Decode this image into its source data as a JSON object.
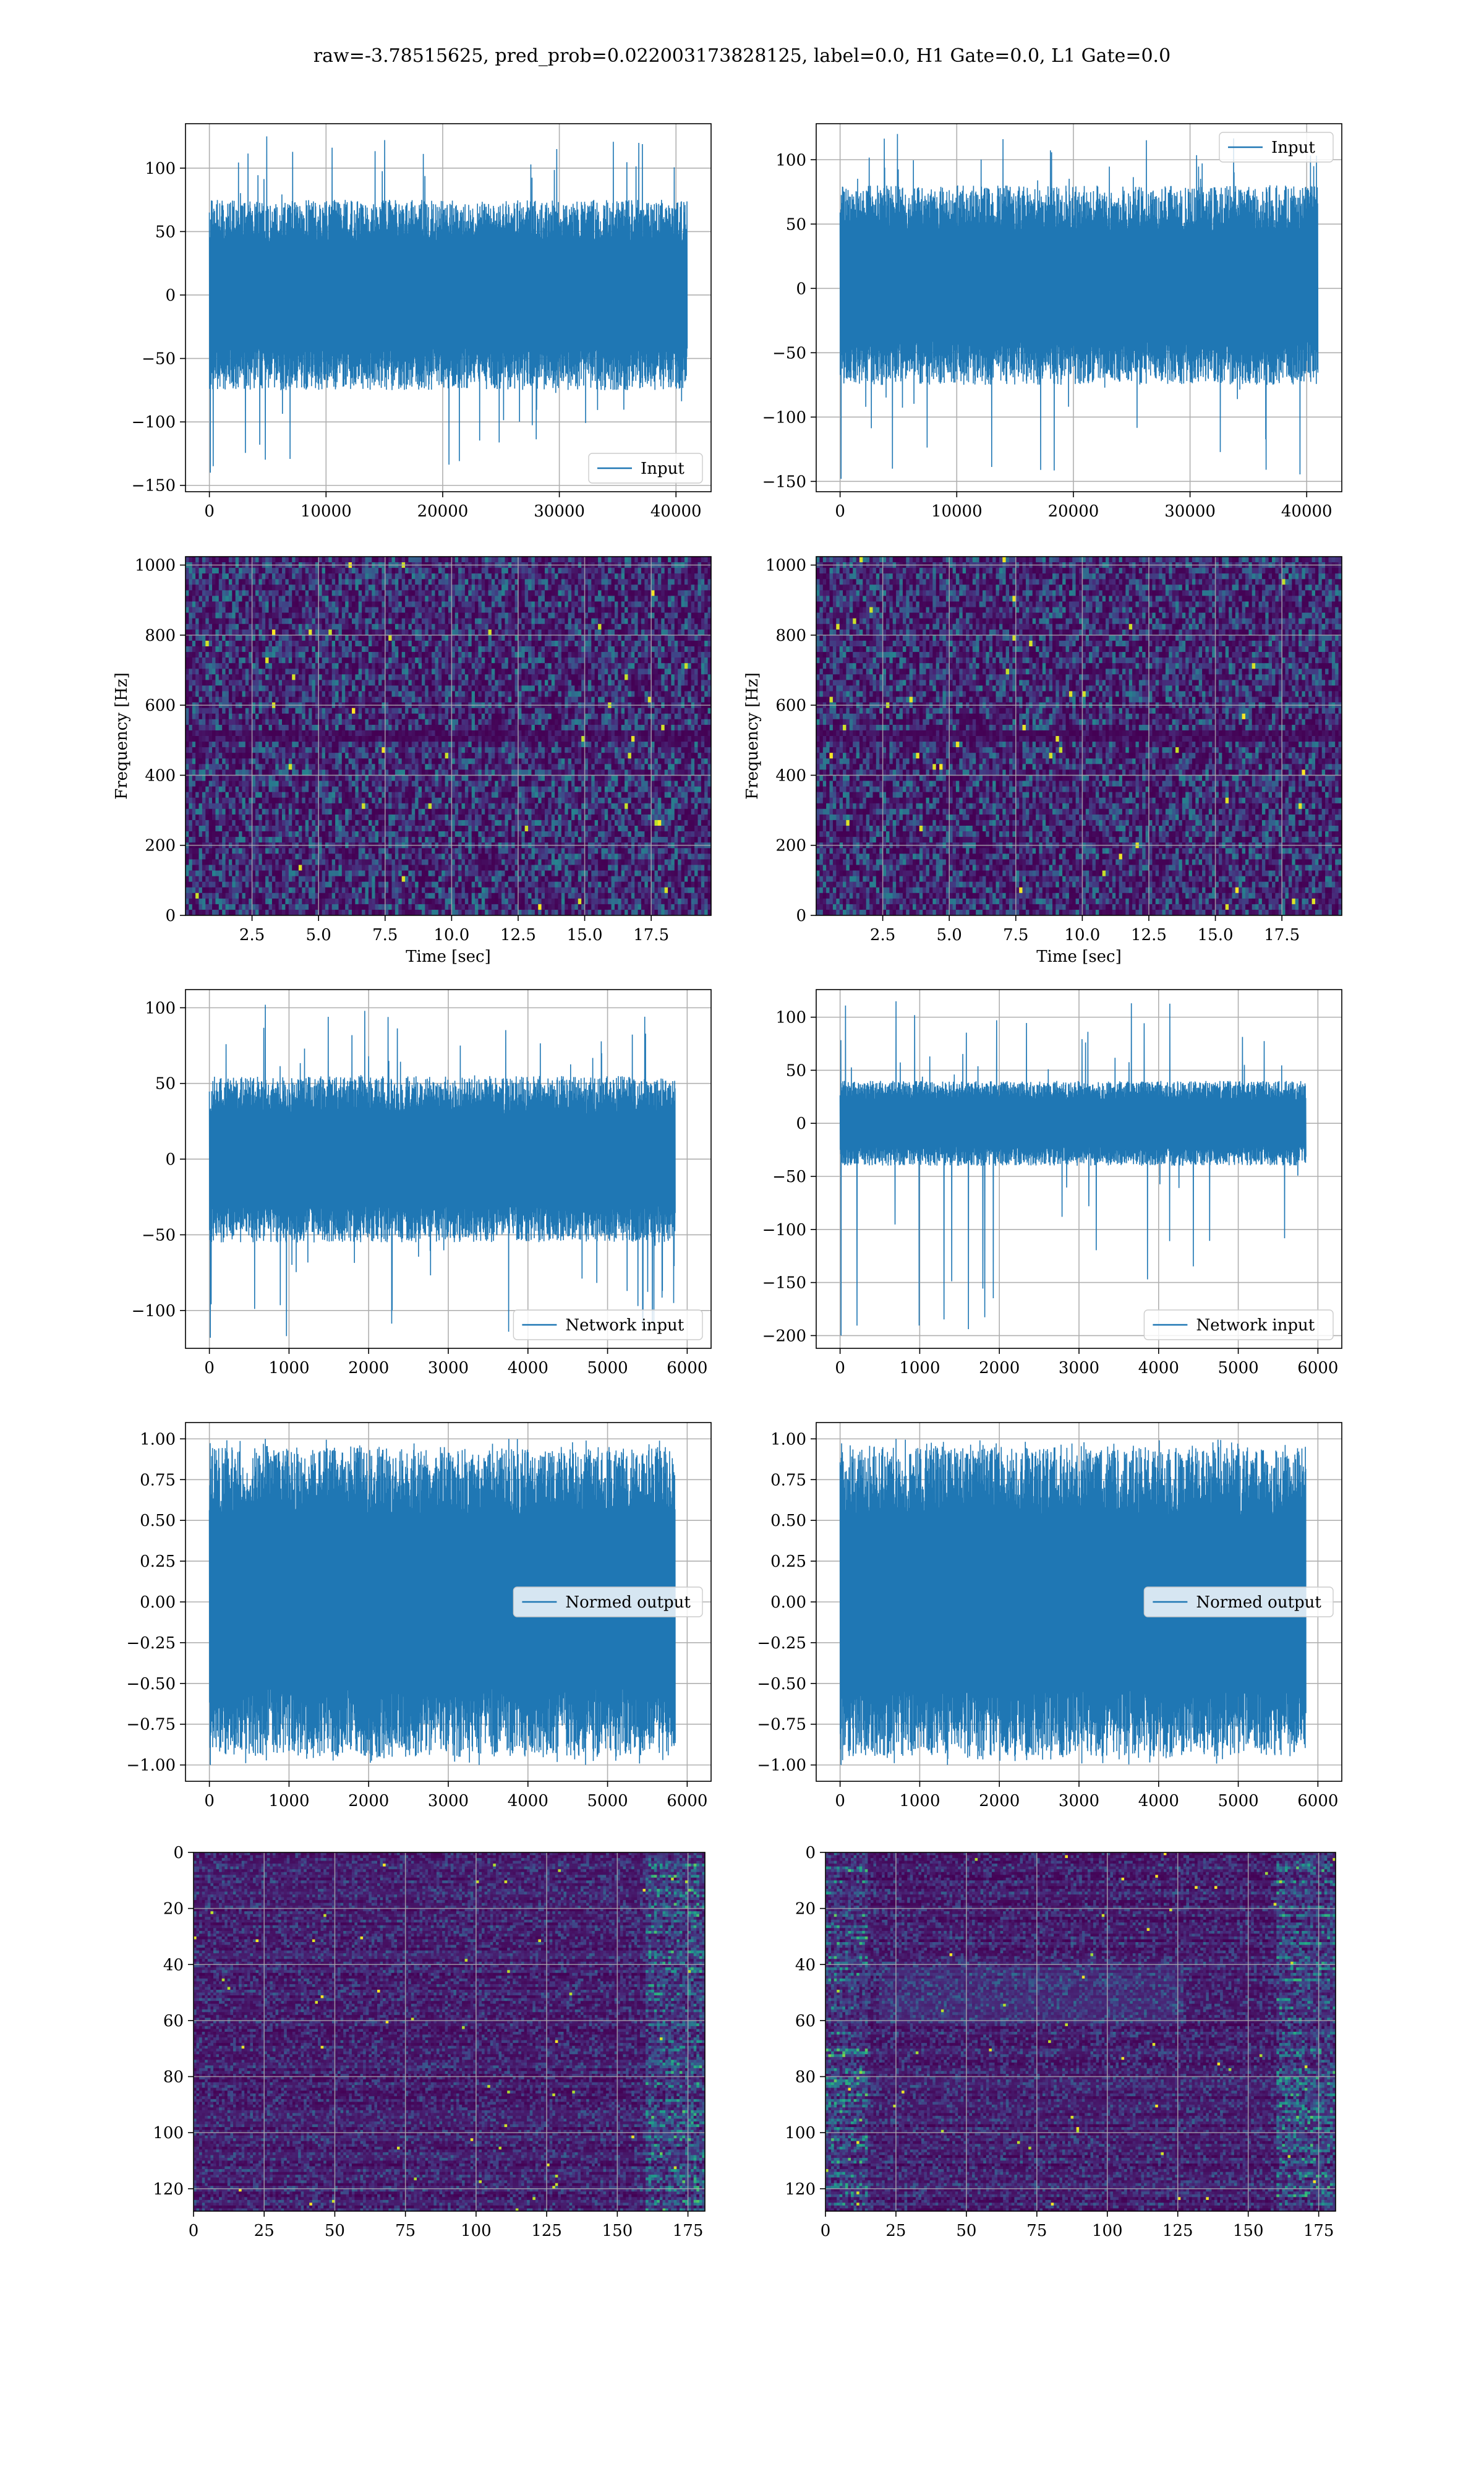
{
  "figure": {
    "suptitle": "raw=-3.78515625, pred_prob=0.022003173828125, label=0.0, H1 Gate=0.0, L1 Gate=0.0",
    "colors": {
      "line": "#1f77b4",
      "grid": "#b0b0b0",
      "axes": "#000000",
      "background": "#ffffff"
    }
  },
  "chart_data": [
    {
      "id": "input-h1",
      "type": "line",
      "grid": true,
      "xlim": [
        -2048,
        43008
      ],
      "ylim": [
        -155,
        135
      ],
      "xticks": [
        0,
        10000,
        20000,
        30000,
        40000
      ],
      "xtick_labels": [
        "0",
        "10000",
        "20000",
        "30000",
        "40000"
      ],
      "yticks": [
        -150,
        -100,
        -50,
        0,
        50,
        100
      ],
      "ytick_labels": [
        "−150",
        "−100",
        "−50",
        "0",
        "50",
        "100"
      ],
      "legend": {
        "position": "lower-right",
        "entries": [
          "Input"
        ]
      },
      "series": [
        {
          "name": "Input",
          "color": "#1f77b4",
          "n": 40960,
          "x_range": [
            0,
            40960
          ],
          "band": [
            -75,
            75
          ],
          "extremes": [
            -140,
            125
          ]
        }
      ]
    },
    {
      "id": "input-l1",
      "type": "line",
      "grid": true,
      "xlim": [
        -2048,
        43008
      ],
      "ylim": [
        -158,
        128
      ],
      "xticks": [
        0,
        10000,
        20000,
        30000,
        40000
      ],
      "xtick_labels": [
        "0",
        "10000",
        "20000",
        "30000",
        "40000"
      ],
      "yticks": [
        -150,
        -100,
        -50,
        0,
        50,
        100
      ],
      "ytick_labels": [
        "−150",
        "−100",
        "−50",
        "0",
        "50",
        "100"
      ],
      "legend": {
        "position": "upper-right",
        "entries": [
          "Input"
        ]
      },
      "series": [
        {
          "name": "Input",
          "color": "#1f77b4",
          "n": 40960,
          "x_range": [
            0,
            40960
          ],
          "band": [
            -75,
            80
          ],
          "extremes": [
            -148,
            120
          ]
        }
      ]
    },
    {
      "id": "spectrogram-h1",
      "type": "heatmap",
      "grid": true,
      "colormap": "viridis",
      "xlim": [
        0,
        19.75
      ],
      "ylim": [
        0,
        1024
      ],
      "xticks": [
        2.5,
        5.0,
        7.5,
        10.0,
        12.5,
        15.0,
        17.5
      ],
      "xtick_labels": [
        "2.5",
        "5.0",
        "7.5",
        "10.0",
        "12.5",
        "15.0",
        "17.5"
      ],
      "yticks": [
        0,
        200,
        400,
        600,
        800,
        1000
      ],
      "ytick_labels": [
        "0",
        "200",
        "400",
        "600",
        "800",
        "1000"
      ],
      "xlabel": "Time [sec]",
      "ylabel": "Frequency [Hz]"
    },
    {
      "id": "spectrogram-l1",
      "type": "heatmap",
      "grid": true,
      "colormap": "viridis",
      "xlim": [
        0,
        19.75
      ],
      "ylim": [
        0,
        1024
      ],
      "xticks": [
        2.5,
        5.0,
        7.5,
        10.0,
        12.5,
        15.0,
        17.5
      ],
      "xtick_labels": [
        "2.5",
        "5.0",
        "7.5",
        "10.0",
        "12.5",
        "15.0",
        "17.5"
      ],
      "yticks": [
        0,
        200,
        400,
        600,
        800,
        1000
      ],
      "ytick_labels": [
        "0",
        "200",
        "400",
        "600",
        "800",
        "1000"
      ],
      "xlabel": "Time [sec]",
      "ylabel": "Frequency [Hz]"
    },
    {
      "id": "network-input-h1",
      "type": "line",
      "grid": true,
      "xlim": [
        -300,
        6300
      ],
      "ylim": [
        -125,
        112
      ],
      "xticks": [
        0,
        1000,
        2000,
        3000,
        4000,
        5000,
        6000
      ],
      "xtick_labels": [
        "0",
        "1000",
        "2000",
        "3000",
        "4000",
        "5000",
        "6000"
      ],
      "yticks": [
        -100,
        -50,
        0,
        50,
        100
      ],
      "ytick_labels": [
        "−100",
        "−50",
        "0",
        "50",
        "100"
      ],
      "legend": {
        "position": "lower-right",
        "entries": [
          "Network input"
        ]
      },
      "series": [
        {
          "name": "Network input",
          "color": "#1f77b4",
          "n": 5900,
          "x_range": [
            0,
            5850
          ],
          "band": [
            -55,
            55
          ],
          "extremes": [
            -118,
            102
          ]
        }
      ]
    },
    {
      "id": "network-input-l1",
      "type": "line",
      "grid": true,
      "xlim": [
        -300,
        6300
      ],
      "ylim": [
        -212,
        126
      ],
      "xticks": [
        0,
        1000,
        2000,
        3000,
        4000,
        5000,
        6000
      ],
      "xtick_labels": [
        "0",
        "1000",
        "2000",
        "3000",
        "4000",
        "5000",
        "6000"
      ],
      "yticks": [
        -200,
        -150,
        -100,
        -50,
        0,
        50,
        100
      ],
      "ytick_labels": [
        "−200",
        "−150",
        "−100",
        "−50",
        "0",
        "50",
        "100"
      ],
      "legend": {
        "position": "lower-right",
        "entries": [
          "Network input"
        ]
      },
      "series": [
        {
          "name": "Network input",
          "color": "#1f77b4",
          "n": 5900,
          "x_range": [
            0,
            5850
          ],
          "band": [
            -40,
            40
          ],
          "extremes": [
            -200,
            115
          ]
        }
      ]
    },
    {
      "id": "normed-output-h1",
      "type": "line",
      "grid": true,
      "xlim": [
        -300,
        6300
      ],
      "ylim": [
        -1.1,
        1.1
      ],
      "xticks": [
        0,
        1000,
        2000,
        3000,
        4000,
        5000,
        6000
      ],
      "xtick_labels": [
        "0",
        "1000",
        "2000",
        "3000",
        "4000",
        "5000",
        "6000"
      ],
      "yticks": [
        -1.0,
        -0.75,
        -0.5,
        -0.25,
        0.0,
        0.25,
        0.5,
        0.75,
        1.0
      ],
      "ytick_labels": [
        "−1.00",
        "−0.75",
        "−0.50",
        "−0.25",
        "0.00",
        "0.25",
        "0.50",
        "0.75",
        "1.00"
      ],
      "legend": {
        "position": "center-right",
        "entries": [
          "Normed output"
        ]
      },
      "series": [
        {
          "name": "Normed output",
          "color": "#1f77b4",
          "n": 5900,
          "x_range": [
            0,
            5850
          ],
          "band": [
            -0.95,
            0.95
          ],
          "extremes": [
            -1.0,
            1.0
          ]
        }
      ]
    },
    {
      "id": "normed-output-l1",
      "type": "line",
      "grid": true,
      "xlim": [
        -300,
        6300
      ],
      "ylim": [
        -1.1,
        1.1
      ],
      "xticks": [
        0,
        1000,
        2000,
        3000,
        4000,
        5000,
        6000
      ],
      "xtick_labels": [
        "0",
        "1000",
        "2000",
        "3000",
        "4000",
        "5000",
        "6000"
      ],
      "yticks": [
        -1.0,
        -0.75,
        -0.5,
        -0.25,
        0.0,
        0.25,
        0.5,
        0.75,
        1.0
      ],
      "ytick_labels": [
        "−1.00",
        "−0.75",
        "−0.50",
        "−0.25",
        "0.00",
        "0.25",
        "0.50",
        "0.75",
        "1.00"
      ],
      "legend": {
        "position": "center-right",
        "entries": [
          "Normed output"
        ]
      },
      "series": [
        {
          "name": "Normed output",
          "color": "#1f77b4",
          "n": 5900,
          "x_range": [
            0,
            5850
          ],
          "band": [
            -0.95,
            0.95
          ],
          "extremes": [
            -1.0,
            1.0
          ]
        }
      ]
    },
    {
      "id": "feature-map-h1",
      "type": "heatmap",
      "grid": true,
      "colormap": "viridis",
      "xlim": [
        0,
        181
      ],
      "ylim": [
        128,
        0
      ],
      "xticks": [
        0,
        25,
        50,
        75,
        100,
        125,
        150,
        175
      ],
      "xtick_labels": [
        "0",
        "25",
        "50",
        "75",
        "100",
        "125",
        "150",
        "175"
      ],
      "yticks": [
        0,
        20,
        40,
        60,
        80,
        100,
        120
      ],
      "ytick_labels": [
        "0",
        "20",
        "40",
        "60",
        "80",
        "100",
        "120"
      ]
    },
    {
      "id": "feature-map-l1",
      "type": "heatmap",
      "grid": true,
      "colormap": "viridis",
      "xlim": [
        0,
        181
      ],
      "ylim": [
        128,
        0
      ],
      "xticks": [
        0,
        25,
        50,
        75,
        100,
        125,
        150,
        175
      ],
      "xtick_labels": [
        "0",
        "25",
        "50",
        "75",
        "100",
        "125",
        "150",
        "175"
      ],
      "yticks": [
        0,
        20,
        40,
        60,
        80,
        100,
        120
      ],
      "ytick_labels": [
        "0",
        "20",
        "40",
        "60",
        "80",
        "100",
        "120"
      ]
    }
  ]
}
